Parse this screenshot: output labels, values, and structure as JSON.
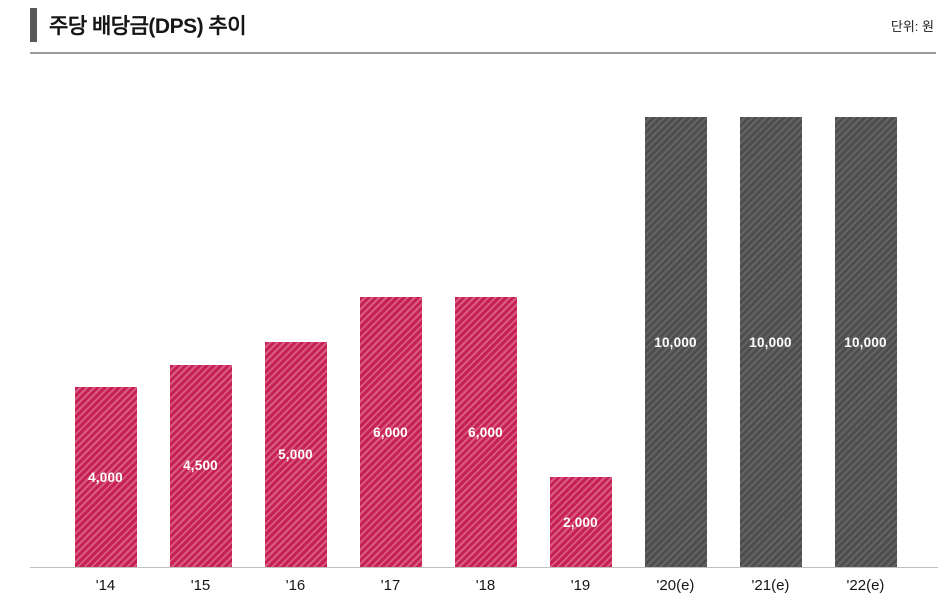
{
  "header": {
    "title": "주당 배당금(DPS) 추이",
    "unit_label": "단위: 원"
  },
  "colors": {
    "accent_bar": "#595959",
    "header_rule": "#9a9a9a",
    "actual_bar": "#c72055",
    "actual_stripe": "#d95c82",
    "estimate_bar": "#4e4e4e",
    "estimate_stripe": "#646464",
    "axis_line": "#c0c0c0",
    "label_text": "#ffffff"
  },
  "chart_data": {
    "type": "bar",
    "title": "주당 배당금(DPS) 추이",
    "unit": "원",
    "categories": [
      "'14",
      "'15",
      "'16",
      "'17",
      "'18",
      "'19",
      "'20(e)",
      "'21(e)",
      "'22(e)"
    ],
    "values": [
      4000,
      4500,
      5000,
      6000,
      6000,
      2000,
      10000,
      10000,
      10000
    ],
    "value_labels": [
      "4,000",
      "4,500",
      "5,000",
      "6,000",
      "6,000",
      "2,000",
      "10,000",
      "10,000",
      "10,000"
    ],
    "series_kind": [
      "actual",
      "actual",
      "actual",
      "actual",
      "actual",
      "actual",
      "estimate",
      "estimate",
      "estimate"
    ],
    "xlabel": "",
    "ylabel": "원",
    "ylim": [
      0,
      10000
    ],
    "grid": false,
    "legend": false,
    "bar_style": "diagonal-hatch",
    "label_position": "inside-center"
  }
}
